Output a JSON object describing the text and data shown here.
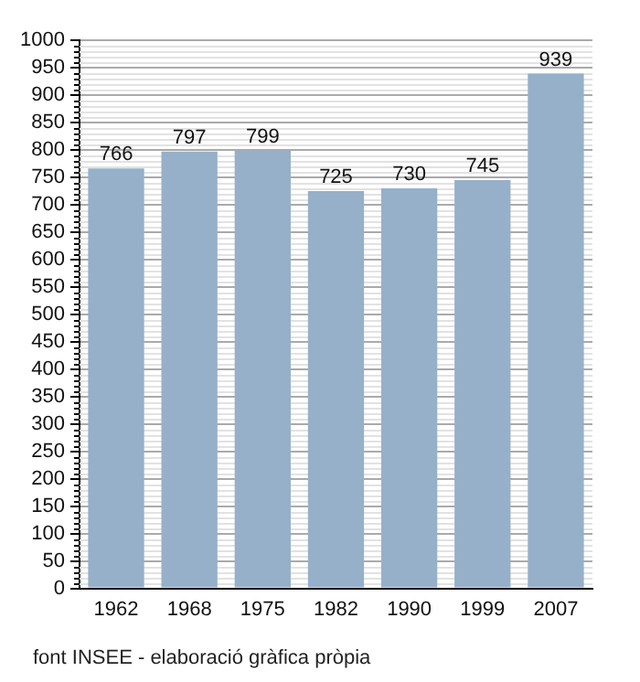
{
  "chart_data": {
    "type": "bar",
    "categories": [
      "1962",
      "1968",
      "1975",
      "1982",
      "1990",
      "1999",
      "2007"
    ],
    "values": [
      766,
      797,
      799,
      725,
      730,
      745,
      939
    ],
    "color": "#96b0c9",
    "ylim": [
      0,
      1000
    ],
    "yticks": [
      0,
      50,
      100,
      150,
      200,
      250,
      300,
      350,
      400,
      450,
      500,
      550,
      600,
      650,
      700,
      750,
      800,
      850,
      900,
      950,
      1000
    ],
    "grid": "y",
    "data_labels": true,
    "annotations": [
      "font INSEE - elaboració gràfica pròpia"
    ]
  }
}
